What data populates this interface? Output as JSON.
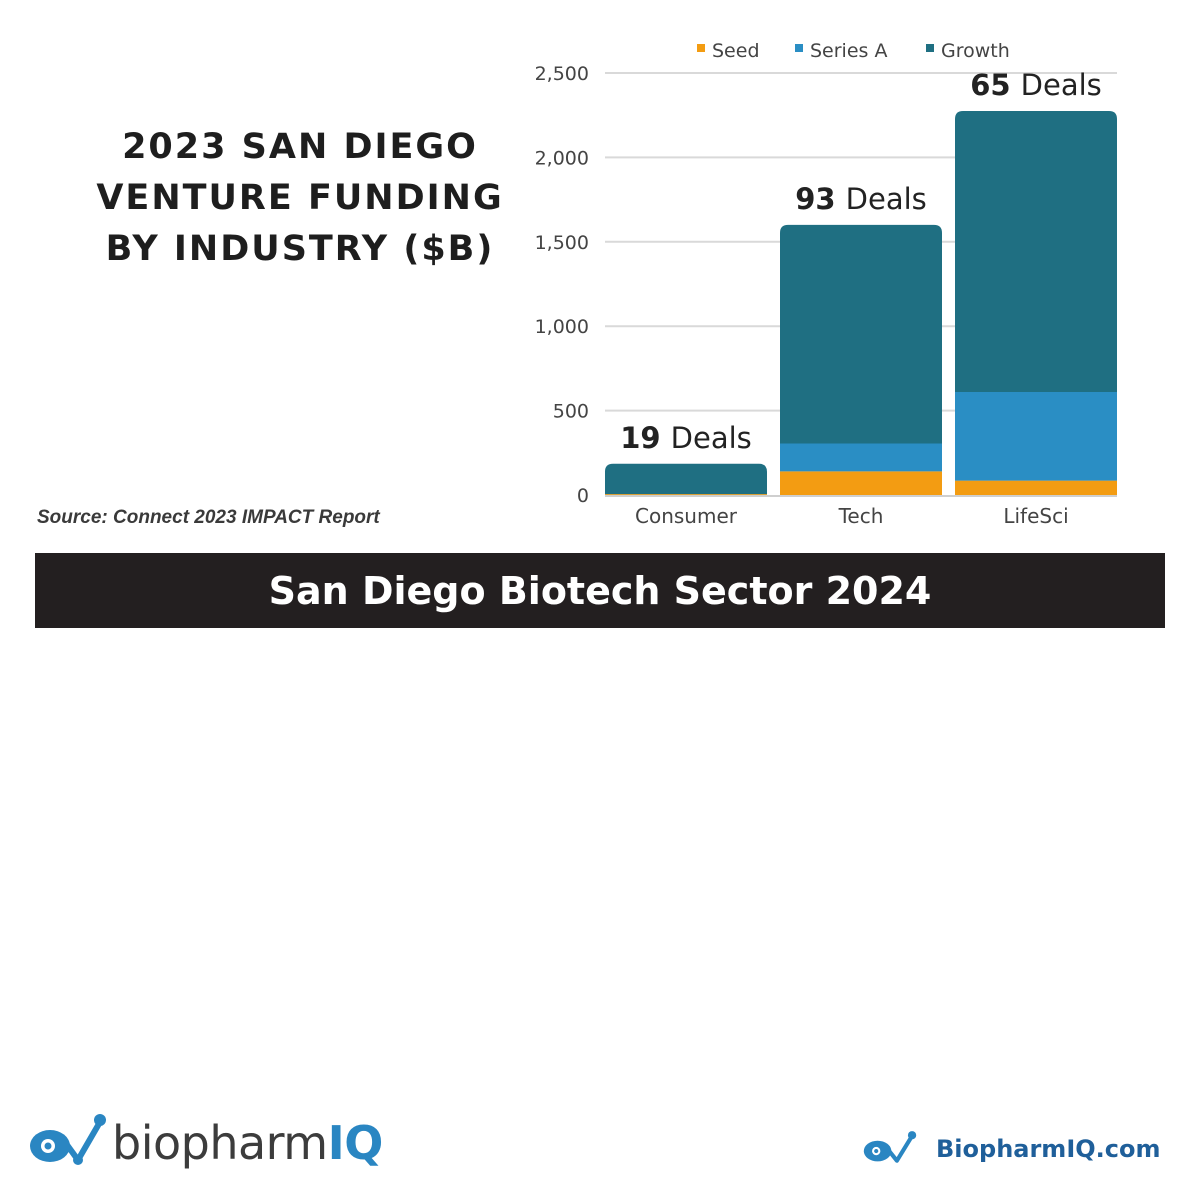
{
  "title_lines": [
    "2023 SAN DIEGO",
    "VENTURE FUNDING",
    "BY INDUSTRY ($B)"
  ],
  "source": "Source: Connect 2023 IMPACT Report",
  "banner": "San Diego Biotech Sector 2024",
  "brand": {
    "logo_word": "biopharm",
    "logo_iq": "IQ",
    "url": "BiopharmIQ.com",
    "logo_color": "#2a86c2"
  },
  "chart_data": {
    "type": "bar",
    "stacked": true,
    "categories": [
      "Consumer",
      "Tech",
      "LifeSci"
    ],
    "series": [
      {
        "name": "Seed",
        "color": "#f39c12",
        "values": [
          5,
          140,
          85
        ]
      },
      {
        "name": "Series A",
        "color": "#2a8ec4",
        "values": [
          0,
          165,
          525
        ]
      },
      {
        "name": "Growth",
        "color": "#1f6f82",
        "values": [
          180,
          1295,
          1665
        ]
      }
    ],
    "deal_labels": [
      {
        "count": "19",
        "text": "Deals"
      },
      {
        "count": "93",
        "text": "Deals"
      },
      {
        "count": "65",
        "text": "Deals"
      }
    ],
    "yticks": [
      "0",
      "500",
      "1,000",
      "1,500",
      "2,000",
      "2,500"
    ],
    "ytick_values": [
      0,
      500,
      1000,
      1500,
      2000,
      2500
    ],
    "ylim": [
      0,
      2500
    ],
    "grid": true,
    "legend_position": "top"
  }
}
